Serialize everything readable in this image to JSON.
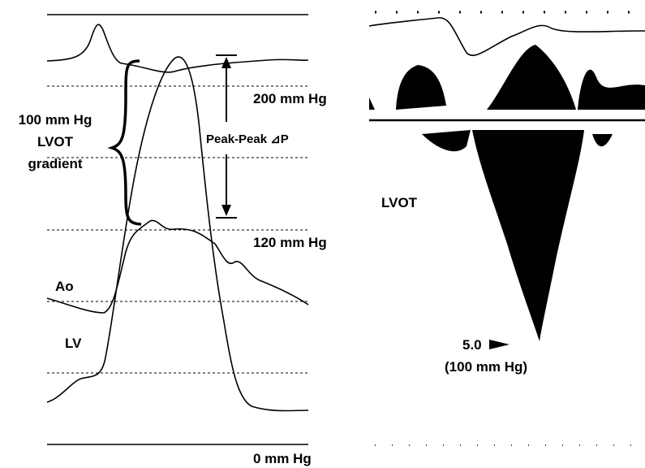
{
  "left_panel": {
    "gradient_label": [
      "100 mm Hg",
      "LVOT",
      "gradient"
    ],
    "peak_label": "Peak-Peak ⊿P",
    "scale_labels": [
      "200 mm Hg",
      "120 mm Hg",
      "0 mm Hg"
    ],
    "curve_labels": [
      "Ao",
      "LV"
    ]
  },
  "right_panel": {
    "region_label": "LVOT",
    "velocity_label": "5.0",
    "pressure_label": "(100 mm Hg)"
  }
}
